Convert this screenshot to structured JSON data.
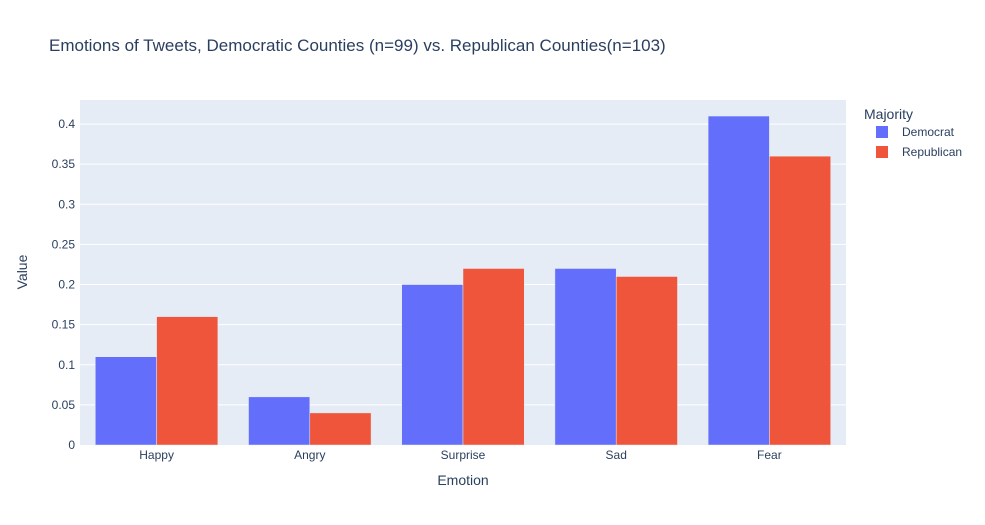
{
  "chart_data": {
    "type": "bar",
    "title": "Emotions of Tweets, Democratic Counties (n=99) vs. Republican Counties(n=103)",
    "xlabel": "Emotion",
    "ylabel": "Value",
    "categories": [
      "Happy",
      "Angry",
      "Surprise",
      "Sad",
      "Fear"
    ],
    "series": [
      {
        "name": "Democrat",
        "values": [
          0.11,
          0.06,
          0.2,
          0.22,
          0.41
        ],
        "color": "#636efa"
      },
      {
        "name": "Republican",
        "values": [
          0.16,
          0.04,
          0.22,
          0.21,
          0.36
        ],
        "color": "#ef553b"
      }
    ],
    "ylim": [
      0,
      0.43
    ],
    "yticks": [
      {
        "value": 0,
        "label": "0"
      },
      {
        "value": 0.05,
        "label": "0.05"
      },
      {
        "value": 0.1,
        "label": "0.1"
      },
      {
        "value": 0.15,
        "label": "0.15"
      },
      {
        "value": 0.2,
        "label": "0.2"
      },
      {
        "value": 0.25,
        "label": "0.25"
      },
      {
        "value": 0.3,
        "label": "0.3"
      },
      {
        "value": 0.35,
        "label": "0.35"
      },
      {
        "value": 0.4,
        "label": "0.4"
      }
    ],
    "grid": true,
    "legend": {
      "title": "Majority",
      "placement": "top-right, outside plot"
    },
    "colors": {
      "plot_background": "#e5ecf6",
      "gridline": "#ffffff",
      "text": "#2a3f5f"
    }
  }
}
